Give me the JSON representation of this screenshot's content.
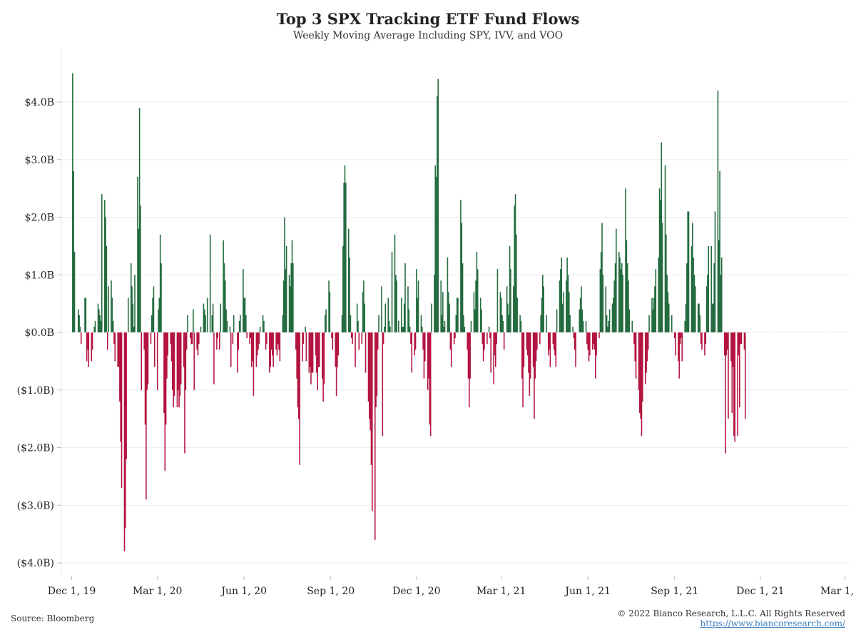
{
  "chart_data": {
    "type": "bar",
    "title": "Top 3 SPX Tracking ETF Fund Flows",
    "subtitle": "Weekly Moving Average Including SPY, IVV, and VOO",
    "xlabel": "",
    "ylabel": "",
    "ylim": [
      -4.2,
      4.5
    ],
    "y_ticks": [
      4,
      3,
      2,
      1,
      0,
      -1,
      -2,
      -3,
      -4
    ],
    "y_tick_labels": [
      "$4.0B",
      "$3.0B",
      "$2.0B",
      "$1.0B",
      "$0.0B",
      "($1.0B)",
      "($2.0B)",
      "($3.0B)",
      "($4.0B)"
    ],
    "x_range": [
      "2019-11-20",
      "2022-03-05"
    ],
    "x_ticks": [
      "2019-12-01",
      "2020-03-01",
      "2020-06-01",
      "2020-09-01",
      "2020-12-01",
      "2021-03-01",
      "2021-06-01",
      "2021-09-01",
      "2021-12-01",
      "2022-03-01"
    ],
    "x_tick_labels": [
      "Dec 1, 19",
      "Mar 1, 20",
      "Jun 1, 20",
      "Sep 1, 20",
      "Dec 1, 20",
      "Mar 1, 21",
      "Jun 1, 21",
      "Sep 1, 21",
      "Dec 1, 21",
      "Mar 1, 22"
    ],
    "grid": true,
    "positive_color": "#236b3e",
    "negative_color": "#b3133f",
    "series": [
      {
        "start_date": "2019-12-02",
        "step": "1 business day",
        "unit": "$B",
        "values": [
          4.5,
          2.8,
          1.4,
          0.0,
          0.4,
          0.3,
          0.1,
          -0.2,
          0.0,
          0.6,
          0.6,
          -0.5,
          -0.3,
          -0.6,
          -0.5,
          -0.3,
          0.0,
          0.1,
          0.2,
          0.5,
          0.4,
          0.3,
          0.2,
          2.4,
          2.3,
          2.0,
          1.5,
          -0.3,
          0.8,
          0.9,
          0.6,
          0.2,
          -0.2,
          -0.5,
          -0.6,
          -0.6,
          -1.2,
          -1.9,
          -2.7,
          -3.8,
          -3.4,
          -2.2,
          0.0,
          0.6,
          1.2,
          0.8,
          0.5,
          0.1,
          1.0,
          2.7,
          1.8,
          3.9,
          2.2,
          -1.0,
          -0.3,
          -1.6,
          -2.9,
          -1.0,
          -0.9,
          -0.2,
          0.3,
          0.6,
          0.8,
          -0.6,
          -1.0,
          0.4,
          0.6,
          1.7,
          1.2,
          -1.4,
          -2.4,
          -1.6,
          -0.8,
          -0.4,
          -0.2,
          -0.5,
          -1.0,
          -1.3,
          -1.1,
          -1.3,
          -1.0,
          -1.3,
          -1.1,
          -0.9,
          -0.6,
          -2.1,
          -1.0,
          -0.3,
          0.3,
          -0.1,
          -0.2,
          -0.2,
          0.4,
          -1.0,
          -0.3,
          -0.4,
          -0.2,
          0.0,
          0.1,
          0.5,
          0.4,
          0.3,
          0.0,
          0.6,
          1.7,
          0.0,
          0.3,
          0.5,
          -0.9,
          -0.3,
          -0.1,
          0.0,
          -0.3,
          0.5,
          1.6,
          1.2,
          0.9,
          0.4,
          0.2,
          0.1,
          -0.6,
          0.0,
          -0.2,
          0.3,
          0.0,
          -0.7,
          -0.3,
          0.2,
          0.3,
          1.1,
          0.6,
          0.6,
          0.3,
          -0.1,
          -0.2,
          -0.1,
          -0.6,
          -0.5,
          -1.1,
          -0.6,
          -0.4,
          -0.3,
          -0.2,
          0.1,
          0.3,
          0.2,
          0.0,
          -0.3,
          -0.2,
          -0.7,
          -0.6,
          -0.3,
          -0.4,
          -0.6,
          -0.3,
          -0.4,
          -0.2,
          -0.3,
          -0.5,
          0.3,
          0.9,
          2.0,
          1.1,
          1.5,
          1.0,
          0.8,
          1.2,
          1.6,
          1.2,
          -0.3,
          -0.8,
          -1.3,
          -1.5,
          -2.3,
          -0.5,
          -0.2,
          0.0,
          0.1,
          -0.5,
          -0.7,
          -0.6,
          -0.9,
          -0.7,
          -0.7,
          -0.4,
          -0.7,
          -1.0,
          -0.6,
          -0.6,
          -0.8,
          -1.2,
          -0.9,
          0.3,
          0.4,
          0.9,
          0.7,
          0.0,
          -0.1,
          -0.3,
          -0.6,
          -1.1,
          -0.6,
          -0.4,
          0.0,
          0.3,
          1.5,
          2.6,
          2.9,
          2.6,
          1.8,
          1.3,
          0.3,
          -0.1,
          -0.2,
          -0.6,
          0.0,
          0.5,
          0.2,
          -0.3,
          -0.2,
          0.7,
          0.9,
          0.5,
          -0.7,
          -1.2,
          -1.5,
          -1.7,
          -2.3,
          -3.1,
          -3.6,
          -1.3,
          -1.1,
          -0.3,
          0.3,
          0.8,
          -1.8,
          -0.2,
          0.1,
          0.5,
          0.6,
          0.2,
          0.1,
          0.0,
          1.4,
          1.7,
          1.0,
          0.9,
          0.0,
          0.2,
          0.6,
          0.1,
          0.1,
          0.5,
          1.2,
          0.8,
          0.4,
          0.1,
          -0.2,
          -0.7,
          -0.4,
          -0.3,
          1.1,
          0.6,
          0.9,
          0.3,
          0.1,
          -0.3,
          -0.8,
          -0.5,
          -1.0,
          -0.8,
          -1.6,
          -1.8,
          0.5,
          1.0,
          2.9,
          2.7,
          4.1,
          4.4,
          0.9,
          0.3,
          0.7,
          0.1,
          0.2,
          1.3,
          0.7,
          0.5,
          -0.3,
          -0.6,
          -0.2,
          -0.1,
          0.3,
          0.6,
          0.6,
          2.3,
          1.9,
          1.2,
          0.3,
          0.1,
          -0.3,
          -0.8,
          -1.3,
          -0.8,
          0.2,
          0.7,
          0.4,
          0.9,
          1.4,
          1.1,
          0.6,
          0.4,
          -0.2,
          -0.5,
          -0.3,
          -0.2,
          0.0,
          0.1,
          -0.1,
          -0.7,
          -0.9,
          -0.4,
          -0.6,
          -0.2,
          1.1,
          0.7,
          0.6,
          0.3,
          0.2,
          -0.3,
          0.8,
          0.5,
          0.3,
          1.5,
          1.1,
          0.8,
          2.2,
          2.4,
          1.7,
          0.6,
          0.3,
          0.2,
          -0.8,
          -1.3,
          -0.6,
          -0.3,
          -0.4,
          -0.7,
          -1.1,
          -0.8,
          -0.6,
          -1.5,
          -0.8,
          -0.5,
          -0.3,
          -0.2,
          0.3,
          0.6,
          1.0,
          0.8,
          0.3,
          0.0,
          -0.4,
          -0.3,
          -0.6,
          -0.2,
          -0.3,
          -0.4,
          -0.6,
          0.4,
          0.9,
          1.1,
          1.3,
          0.5,
          0.7,
          0.9,
          1.3,
          1.0,
          0.7,
          0.3,
          0.1,
          -0.1,
          -0.3,
          -0.6,
          0.0,
          0.4,
          0.6,
          0.8,
          0.4,
          0.2,
          0.2,
          -0.2,
          -0.3,
          -0.5,
          -0.4,
          -0.3,
          -0.2,
          -0.3,
          -0.8,
          -0.4,
          -0.1,
          1.1,
          1.4,
          1.9,
          1.0,
          0.8,
          0.3,
          0.1,
          0.2,
          0.4,
          0.5,
          0.6,
          0.9,
          1.2,
          1.8,
          1.4,
          1.3,
          1.1,
          1.2,
          1.0,
          2.5,
          1.6,
          1.2,
          0.9,
          0.4,
          0.2,
          0.0,
          -0.2,
          -0.5,
          -0.8,
          -1.0,
          -1.4,
          -1.5,
          -1.8,
          -1.2,
          -0.9,
          -0.7,
          -0.5,
          -0.3,
          0.3,
          0.6,
          0.4,
          0.6,
          0.8,
          1.1,
          1.3,
          2.5,
          2.3,
          3.3,
          1.9,
          2.9,
          1.7,
          1.0,
          0.7,
          0.5,
          0.3,
          0.0,
          0.0,
          -0.1,
          -0.4,
          -0.5,
          -0.8,
          -0.2,
          -0.1,
          -0.5,
          0.2,
          0.5,
          1.2,
          2.1,
          2.1,
          1.5,
          1.9,
          1.3,
          1.0,
          0.8,
          0.5,
          0.5,
          0.3,
          -0.2,
          -0.3,
          -0.4,
          -0.2,
          0.8,
          1.0,
          1.5,
          1.5,
          0.5,
          0.5,
          1.2,
          2.1,
          4.2,
          1.6,
          2.8,
          1.0,
          1.3,
          -0.4,
          -2.1,
          -0.4,
          -0.3,
          -1.5,
          -0.5,
          -1.4,
          -0.6,
          -1.8,
          -1.9,
          -1.8,
          -0.4,
          -1.3,
          -0.2,
          -0.2,
          -0.3,
          -1.5
        ]
      }
    ]
  },
  "footer": {
    "source": "Source: Bloomberg",
    "copyright": "© 2022 Bianco Research, L.L.C. All Rights Reserved",
    "link": "https://www.biancoresearch.com/"
  }
}
